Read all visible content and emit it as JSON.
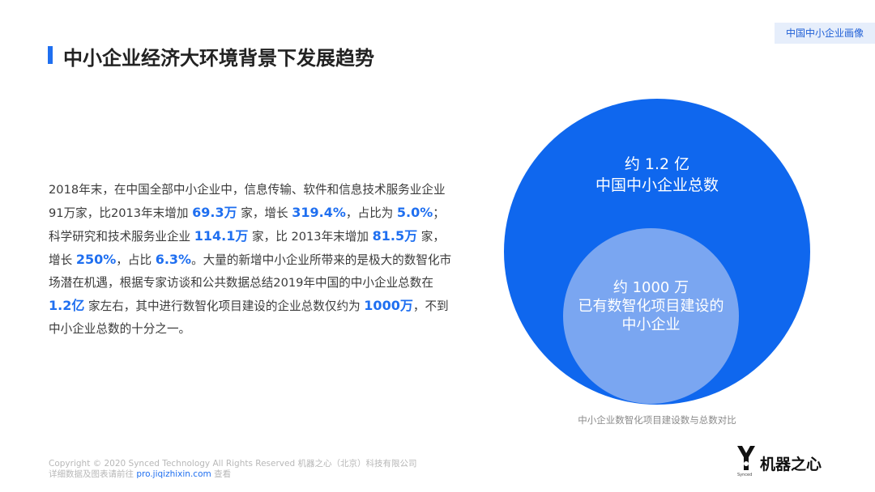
{
  "tag": "中国中小企业画像",
  "title": "中小企业经济大环境背景下发展趋势",
  "body": [
    "2018年末，在中国全部中小企业中，信息传输、软件和信息技术服务业企业91万家，比2013年末增加 ",
    "69.3万",
    " 家，增长 ",
    "319.4%",
    "，占比为 ",
    "5.0%",
    "；科学研究和技术服务业企业 ",
    "114.1万",
    " 家，比 2013年末增加 ",
    "81.5万",
    " 家，增长 ",
    "250%",
    "，占比 ",
    "6.3%",
    "。大量的新增中小企业所带来的是极大的数智化市场潜在机遇，根据专家访谈和公共数据总结2019年中国的中小企业总数在 ",
    "1.2亿",
    " 家左右，其中进行数智化项目建设的企业总数仅约为 ",
    "1000万",
    "，不到中小企业总数的十分之一。"
  ],
  "venn": {
    "outer": {
      "line1": "约 1.2 亿",
      "line2": "中国中小企业总数",
      "color": "#0f67ee"
    },
    "inner": {
      "line1": "约 1000 万",
      "line2": "已有数智化项目建设的",
      "line3": "中小企业",
      "color": "#7aa6f1"
    }
  },
  "caption": "中小企业数智化项目建设数与总数对比",
  "footer": {
    "line1": "Copyright © 2020 Synced Technology All Rights Reserved 机器之心（北京）科技有限公司",
    "line2_prefix": "详细数据及图表请前往 ",
    "line2_link": "pro.jiqizhixin.com",
    "line2_suffix": " 查看"
  },
  "logo": {
    "text": "机器之心",
    "sub": "Synced"
  },
  "colors": {
    "accent": "#1f6ff0"
  }
}
